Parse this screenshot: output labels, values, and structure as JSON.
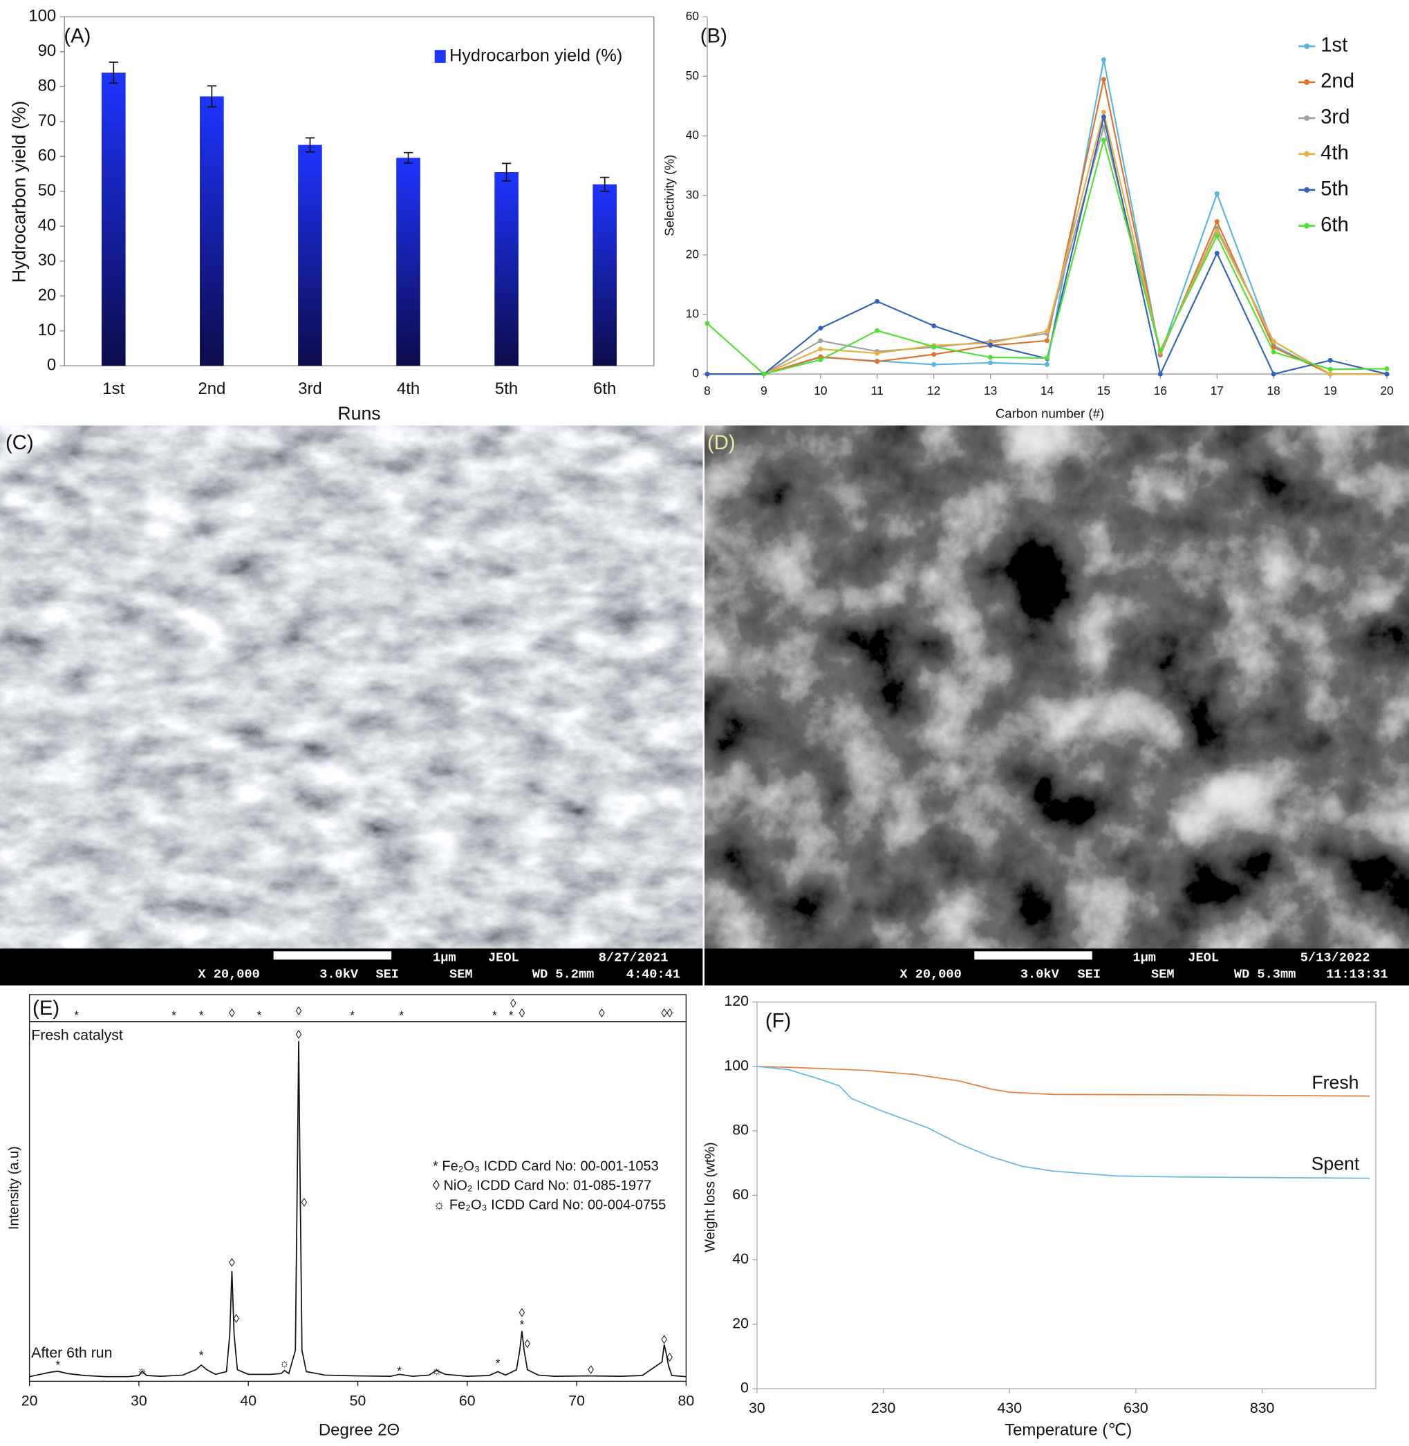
{
  "chart_data": [
    {
      "type": "bar",
      "label": "(A)",
      "xlabel": "Runs",
      "ylabel": "Hydrocarbon yield (%)",
      "categories": [
        "1st",
        "2nd",
        "3rd",
        "4th",
        "5th",
        "6th"
      ],
      "series": [
        {
          "name": "Hydrocarbon yield (%)",
          "color": "#1e34ff",
          "values": [
            84,
            77.2,
            63.3,
            59.6,
            55.5,
            52
          ],
          "errors": [
            3,
            3,
            2,
            1.5,
            2.5,
            2
          ]
        }
      ],
      "ylim": [
        0,
        100
      ],
      "yticks": [
        0,
        10,
        20,
        30,
        40,
        50,
        60,
        70,
        80,
        90,
        100
      ],
      "legend": "upper right"
    },
    {
      "type": "line",
      "label": "(B)",
      "xlabel": "Carbon number (#)",
      "ylabel": "Selectivity (%)",
      "x": [
        8,
        9,
        10,
        11,
        12,
        13,
        14,
        15,
        16,
        17,
        18,
        19,
        20
      ],
      "series": [
        {
          "name": "1st",
          "color": "#5ab4e0",
          "values": [
            0,
            0,
            2.8,
            2.2,
            1.6,
            1.9,
            1.6,
            52.8,
            3.2,
            30.3,
            4.8,
            0,
            0
          ]
        },
        {
          "name": "2nd",
          "color": "#e0702a",
          "values": [
            0,
            0,
            2.9,
            2.1,
            3.3,
            4.8,
            5.6,
            49.5,
            3.2,
            25.6,
            4.5,
            0,
            0
          ]
        },
        {
          "name": "3rd",
          "color": "#a0a0a0",
          "values": [
            0,
            0,
            5.6,
            3.8,
            4.5,
            5.5,
            6.8,
            41.5,
            3.5,
            24.5,
            5.5,
            0,
            0
          ]
        },
        {
          "name": "4th",
          "color": "#e8b040",
          "values": [
            0,
            0,
            4.2,
            3.5,
            4.8,
            5.2,
            7.2,
            44,
            3.8,
            24,
            5.5,
            0,
            0
          ]
        },
        {
          "name": "5th",
          "color": "#3060c0",
          "values": [
            0,
            0,
            7.7,
            12.2,
            8.1,
            4.9,
            2.6,
            43.2,
            0,
            20.3,
            0,
            2.3,
            0
          ]
        },
        {
          "name": "6th",
          "color": "#50e030",
          "values": [
            8.5,
            0,
            2.4,
            7.3,
            4.6,
            2.8,
            2.7,
            39.3,
            4,
            23.2,
            3.7,
            0.8,
            0.9
          ]
        }
      ],
      "xlim": [
        8,
        20
      ],
      "xticks": [
        8,
        9,
        10,
        11,
        12,
        13,
        14,
        15,
        16,
        17,
        18,
        19,
        20
      ],
      "ylim": [
        0,
        60
      ],
      "yticks": [
        0,
        10,
        20,
        30,
        40,
        50,
        60
      ],
      "markers": true,
      "legend": "right"
    },
    {
      "type": "line",
      "label": "(E)",
      "xlabel": "Degree 2Θ",
      "ylabel": "Intensity (a.u)",
      "series": [
        {
          "name": "Fresh catalyst",
          "color": "#111111",
          "x": [
            20,
            80
          ],
          "values": [
            93,
            93
          ]
        },
        {
          "name": "After 6th run",
          "color": "#111111",
          "x": [
            20,
            21,
            22,
            22.6,
            23.5,
            25,
            27,
            29,
            30,
            30.3,
            30.7,
            32,
            34,
            35.2,
            35.7,
            36.2,
            37,
            38,
            38.3,
            38.5,
            38.7,
            39,
            40,
            42,
            43,
            43.3,
            43.7,
            44.3,
            44.5,
            44.6,
            44.7,
            44.9,
            45.3,
            47,
            50,
            53,
            53.8,
            55,
            56.5,
            57.2,
            58,
            60,
            62,
            62.8,
            63.5,
            64.5,
            64.8,
            65,
            65.2,
            65.5,
            66.5,
            68,
            71,
            74,
            76,
            77.8,
            78,
            78.2,
            78.4,
            78.7,
            80
          ],
          "values": [
            1.2,
            1.8,
            2.4,
            2.6,
            2,
            1.5,
            1.2,
            1.2,
            1.5,
            2.6,
            1.5,
            1.3,
            1.6,
            3,
            4.2,
            3,
            1.8,
            2.5,
            12,
            28.5,
            12,
            3,
            1.8,
            1.8,
            2,
            2.8,
            2,
            8,
            60,
            88,
            60,
            8,
            2.5,
            1.6,
            1.4,
            1.3,
            1.8,
            1.3,
            1.6,
            2.8,
            1.8,
            1.3,
            1.5,
            2.5,
            1.6,
            3,
            8,
            13,
            8,
            3,
            1.6,
            1.3,
            1.4,
            1.3,
            1.5,
            5,
            9.5,
            7,
            4,
            1.5,
            1.2
          ]
        }
      ],
      "xlim": [
        20,
        80
      ],
      "xticks": [
        20,
        30,
        40,
        50,
        60,
        70,
        80
      ],
      "ylim": [
        0,
        100
      ],
      "annotations": [
        {
          "x": 24.3,
          "y": 94.5,
          "text": "*"
        },
        {
          "x": 33.2,
          "y": 94.5,
          "text": "*"
        },
        {
          "x": 35.7,
          "y": 94.5,
          "text": "*"
        },
        {
          "x": 38.5,
          "y": 95,
          "text": "◊"
        },
        {
          "x": 41,
          "y": 94.5,
          "text": "*"
        },
        {
          "x": 44.6,
          "y": 95.5,
          "text": "◊"
        },
        {
          "x": 49.5,
          "y": 94.5,
          "text": "*"
        },
        {
          "x": 54,
          "y": 94.5,
          "text": "*"
        },
        {
          "x": 62.5,
          "y": 94.5,
          "text": "*"
        },
        {
          "x": 64,
          "y": 94.5,
          "text": "*"
        },
        {
          "x": 64.2,
          "y": 97.5,
          "text": "◊"
        },
        {
          "x": 65,
          "y": 95,
          "text": "◊"
        },
        {
          "x": 72.3,
          "y": 95,
          "text": "◊"
        },
        {
          "x": 78,
          "y": 95,
          "text": "◊"
        },
        {
          "x": 78.5,
          "y": 95,
          "text": "◊"
        },
        {
          "x": 22.6,
          "y": 4,
          "text": "*"
        },
        {
          "x": 30.3,
          "y": 2.6,
          "text": "☼"
        },
        {
          "x": 35.7,
          "y": 6.5,
          "text": "*"
        },
        {
          "x": 38.5,
          "y": 30.5,
          "text": "◊"
        },
        {
          "x": 38.9,
          "y": 16,
          "text": "◊"
        },
        {
          "x": 43.3,
          "y": 4.5,
          "text": "☼"
        },
        {
          "x": 44.6,
          "y": 89.5,
          "text": "◊"
        },
        {
          "x": 45.1,
          "y": 46,
          "text": "◊"
        },
        {
          "x": 53.8,
          "y": 2.5,
          "text": "*"
        },
        {
          "x": 57.2,
          "y": 2.6,
          "text": "☼"
        },
        {
          "x": 62.8,
          "y": 4.5,
          "text": "*"
        },
        {
          "x": 65,
          "y": 17.5,
          "text": "◊"
        },
        {
          "x": 65,
          "y": 14.5,
          "text": "*"
        },
        {
          "x": 65.5,
          "y": 9.5,
          "text": "◊"
        },
        {
          "x": 71.3,
          "y": 2.8,
          "text": "◊"
        },
        {
          "x": 78,
          "y": 10.5,
          "text": "◊"
        },
        {
          "x": 78.5,
          "y": 6,
          "text": "◊"
        }
      ],
      "legend_text": [
        "* Fe₂O₃ ICDD Card No: 00-001-1053",
        "◊ NiO₂ ICDD Card No: 01-085-1977",
        "☼ Fe₂O₃ ICDD Card No: 00-004-0755"
      ]
    },
    {
      "type": "line",
      "label": "(F)",
      "xlabel": "Temperature (℃)",
      "ylabel": "Weight loss (wt%)",
      "series": [
        {
          "name": "Fresh",
          "color": "#e8803a",
          "x": [
            30,
            100,
            200,
            280,
            350,
            400,
            430,
            500,
            700,
            1000
          ],
          "values": [
            100,
            99.6,
            98.8,
            97.5,
            95.5,
            93,
            92,
            91.3,
            91.2,
            90.8
          ]
        },
        {
          "name": "Spent",
          "color": "#6ab8e8",
          "x": [
            30,
            80,
            130,
            160,
            180,
            230,
            300,
            350,
            400,
            450,
            500,
            600,
            700,
            1000
          ],
          "values": [
            100,
            99,
            96,
            94,
            90,
            86,
            81,
            76,
            72,
            69,
            67.5,
            66,
            65.7,
            65.3
          ]
        }
      ],
      "xlim": [
        30,
        1010
      ],
      "xticks": [
        30,
        230,
        430,
        630,
        830
      ],
      "ylim": [
        0,
        120
      ],
      "yticks": [
        0,
        20,
        40,
        60,
        80,
        100,
        120
      ]
    }
  ],
  "sem_images": [
    {
      "label": "(C)",
      "scale": "1μm",
      "maker": "JEOL",
      "date": "8/27/2021",
      "magnification": "X 20,000",
      "voltage": "3.0kV",
      "mode": "SEI",
      "instrument": "SEM",
      "wd": "WD 5.2mm",
      "time": "4:40:41"
    },
    {
      "label": "(D)",
      "scale": "1μm",
      "maker": "JEOL",
      "date": "5/13/2022",
      "magnification": "X 20,000",
      "voltage": "3.0kV",
      "mode": "SEI",
      "instrument": "SEM",
      "wd": "WD 5.3mm",
      "time": "11:13:31"
    }
  ]
}
